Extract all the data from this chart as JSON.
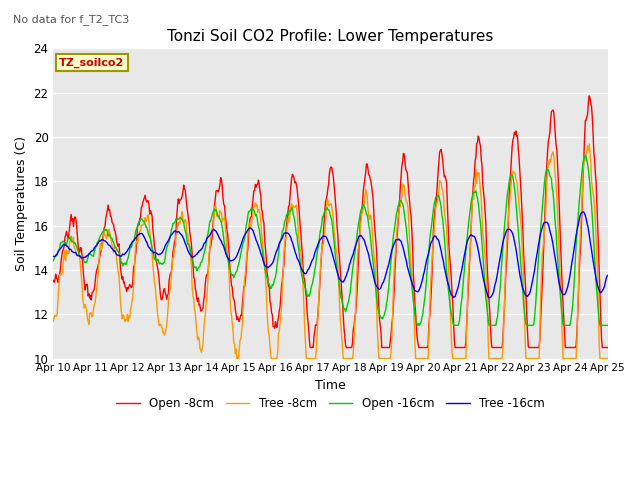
{
  "title": "Tonzi Soil CO2 Profile: Lower Temperatures",
  "subtitle": "No data for f_T2_TC3",
  "ylabel": "Soil Temperatures (C)",
  "xlabel": "Time",
  "legend_label": "TZ_soilco2",
  "ylim": [
    10,
    24
  ],
  "yticks": [
    10,
    12,
    14,
    16,
    18,
    20,
    22,
    24
  ],
  "xtick_labels": [
    "Apr 10",
    "Apr 11",
    "Apr 12",
    "Apr 13",
    "Apr 14",
    "Apr 15",
    "Apr 16",
    "Apr 17",
    "Apr 18",
    "Apr 19",
    "Apr 20",
    "Apr 21",
    "Apr 22",
    "Apr 23",
    "Apr 24",
    "Apr 25"
  ],
  "series_labels": [
    "Open -8cm",
    "Tree -8cm",
    "Open -16cm",
    "Tree -16cm"
  ],
  "series_colors": [
    "#ff0000",
    "#ff9900",
    "#00cc00",
    "#0000ff"
  ],
  "background_color": "#e8e8e8",
  "figwidth": 6.4,
  "figheight": 4.8,
  "dpi": 100
}
